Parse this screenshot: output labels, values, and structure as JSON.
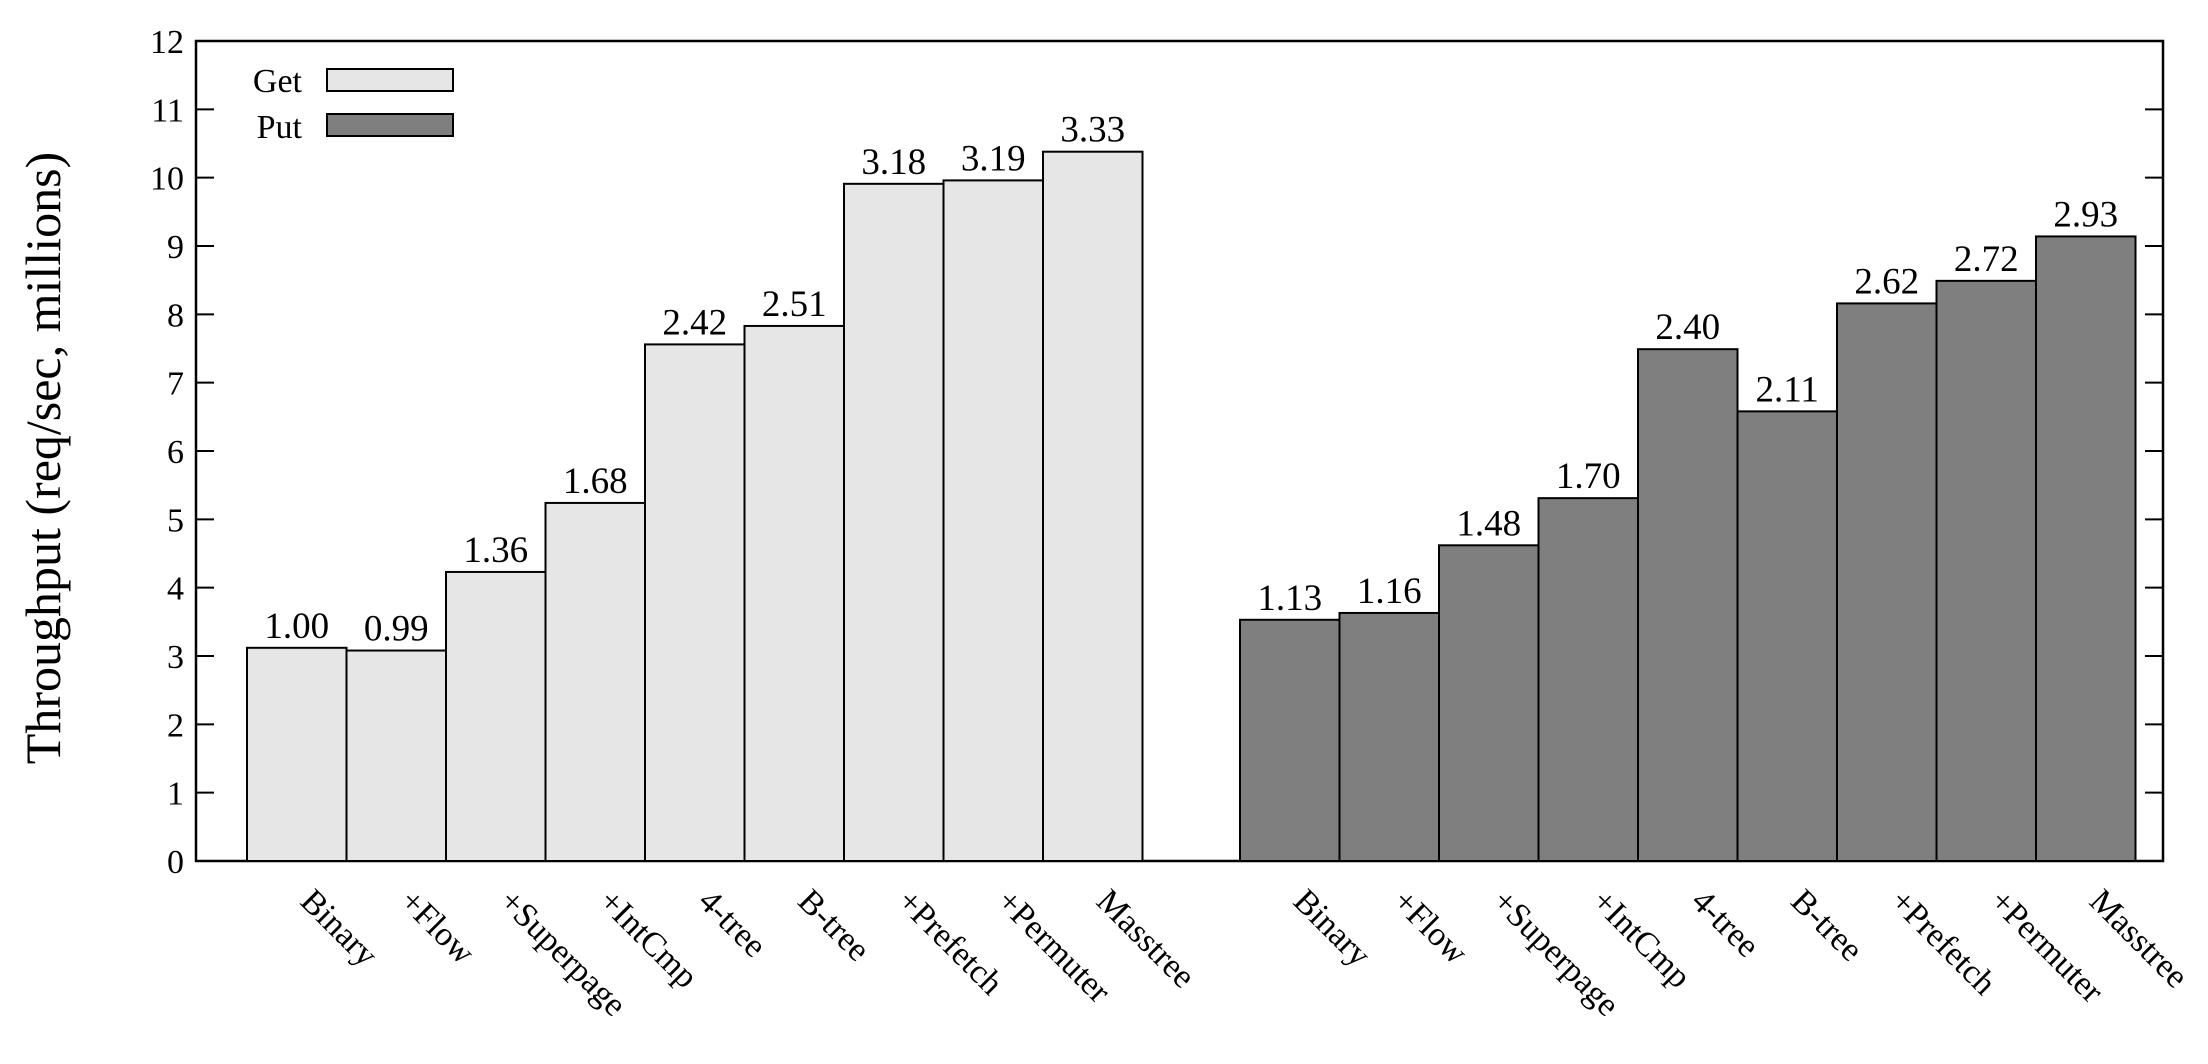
{
  "chart_data": {
    "type": "bar",
    "ylabel": "Throughput (req/sec, millions)",
    "xlabel": "",
    "ylim": [
      0,
      12
    ],
    "yticks": [
      "0",
      "1",
      "2",
      "3",
      "4",
      "5",
      "6",
      "7",
      "8",
      "9",
      "10",
      "11",
      "12"
    ],
    "legend_position": "top-left",
    "categories": [
      "Binary",
      "+Flow",
      "+Superpage",
      "+IntCmp",
      "4-tree",
      "B-tree",
      "+Prefetch",
      "+Permuter",
      "Masstree"
    ],
    "series": [
      {
        "name": "Get",
        "color": "#e6e6e6",
        "values": [
          3.12,
          3.08,
          4.23,
          5.24,
          7.56,
          7.83,
          9.91,
          9.96,
          10.38
        ],
        "labels": [
          "1.00",
          "0.99",
          "1.36",
          "1.68",
          "2.42",
          "2.51",
          "3.18",
          "3.19",
          "3.33"
        ]
      },
      {
        "name": "Put",
        "color": "#7f7f7f",
        "values": [
          3.53,
          3.63,
          4.62,
          5.31,
          7.49,
          6.58,
          8.16,
          8.49,
          9.14
        ],
        "labels": [
          "1.13",
          "1.16",
          "1.48",
          "1.70",
          "2.40",
          "2.11",
          "2.62",
          "2.72",
          "2.93"
        ]
      }
    ]
  }
}
